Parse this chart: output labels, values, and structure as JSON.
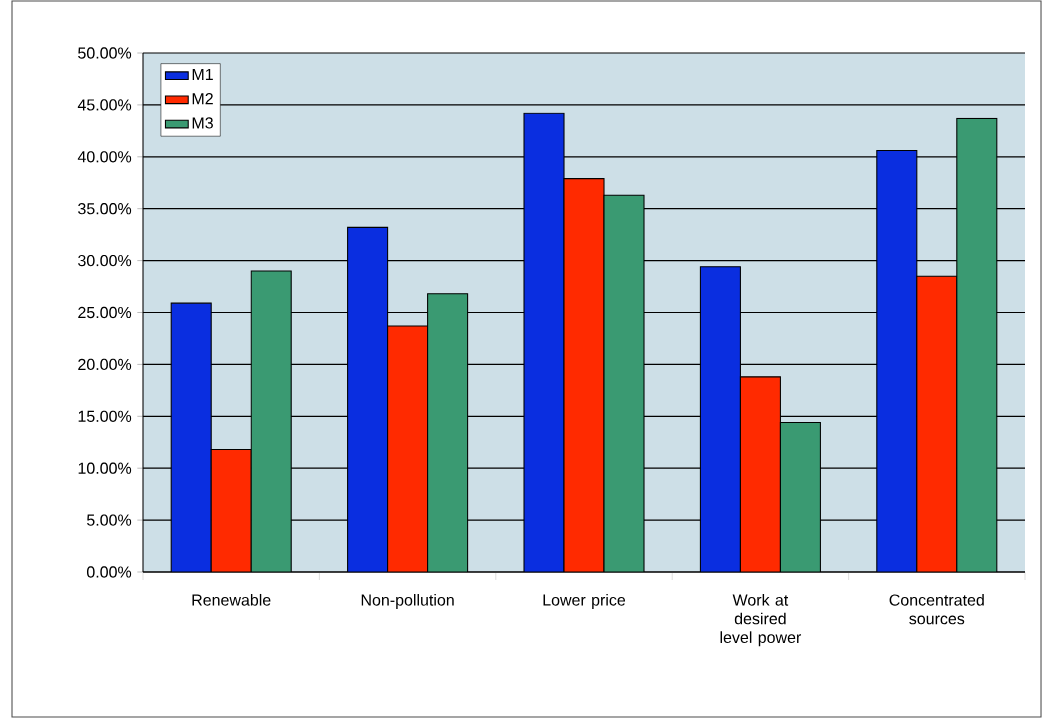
{
  "chart_data": {
    "type": "bar",
    "categories": [
      "Renewable",
      "Non-pollution",
      "Lower price",
      "Work at desired level power",
      "Concentrated sources"
    ],
    "series": [
      {
        "name": "M1",
        "color": "#0a2ee0",
        "values": [
          25.9,
          33.2,
          44.2,
          29.4,
          40.6
        ]
      },
      {
        "name": "M2",
        "color": "#ff2a00",
        "values": [
          11.8,
          23.7,
          37.9,
          18.8,
          28.5
        ]
      },
      {
        "name": "M3",
        "color": "#3a9a72",
        "values": [
          29.0,
          26.8,
          36.3,
          14.4,
          43.7
        ]
      }
    ],
    "ylim": [
      0,
      50
    ],
    "yticks": [
      {
        "value": 0,
        "label": "0.00%"
      },
      {
        "value": 5,
        "label": "5.00%"
      },
      {
        "value": 10,
        "label": "10.00%"
      },
      {
        "value": 15,
        "label": "15.00%"
      },
      {
        "value": 20,
        "label": "20.00%"
      },
      {
        "value": 25,
        "label": "25.00%"
      },
      {
        "value": 30,
        "label": "30.00%"
      },
      {
        "value": 35,
        "label": "35.00%"
      },
      {
        "value": 40,
        "label": "40.00%"
      },
      {
        "value": 45,
        "label": "45.00%"
      },
      {
        "value": 50,
        "label": "50.00%"
      }
    ],
    "grid": "y",
    "legend": "top left"
  }
}
